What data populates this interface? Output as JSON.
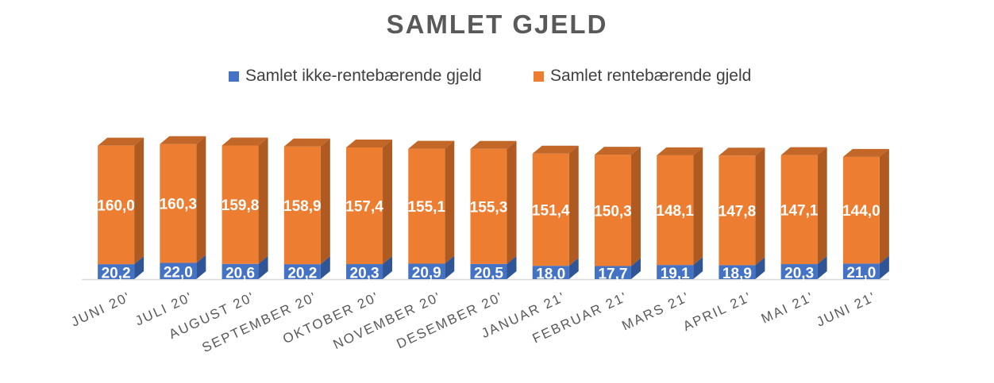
{
  "chart_data": {
    "type": "bar",
    "stacked": true,
    "title": "SAMLET GJELD",
    "categories": [
      "JUNI 20'",
      "JULI 20'",
      "AUGUST 20'",
      "SEPTEMBER 20'",
      "OKTOBER 20'",
      "NOVEMBER 20'",
      "DESEMBER 20'",
      "JANUAR 21'",
      "FEBRUAR 21'",
      "MARS 21'",
      "APRIL 21'",
      "MAI 21'",
      "JUNI 21'"
    ],
    "series": [
      {
        "name": "Samlet ikke-rentebærende gjeld",
        "color": "#4472C4",
        "side_color": "#2F5597",
        "values": [
          20.2,
          22.0,
          20.6,
          20.2,
          20.3,
          20.9,
          20.5,
          18.0,
          17.7,
          19.1,
          18.9,
          20.3,
          21.0
        ],
        "labels": [
          "20,2",
          "22,0",
          "20,6",
          "20,2",
          "20,3",
          "20,9",
          "20,5",
          "18,0",
          "17,7",
          "19,1",
          "18,9",
          "20,3",
          "21,0"
        ]
      },
      {
        "name": "Samlet rentebærende gjeld",
        "color": "#ED7D31",
        "side_color": "#AE5A21",
        "values": [
          160.0,
          160.3,
          159.8,
          158.9,
          157.4,
          155.1,
          155.3,
          151.4,
          150.3,
          148.1,
          147.8,
          147.1,
          144.0
        ],
        "labels": [
          "160,0",
          "160,3",
          "159,8",
          "158,9",
          "157,4",
          "155,1",
          "155,3",
          "151,4",
          "150,3",
          "148,1",
          "147,8",
          "147,1",
          "144,0"
        ]
      }
    ],
    "legend_position": "top",
    "grid": false,
    "ylim": [
      0,
      182
    ]
  }
}
